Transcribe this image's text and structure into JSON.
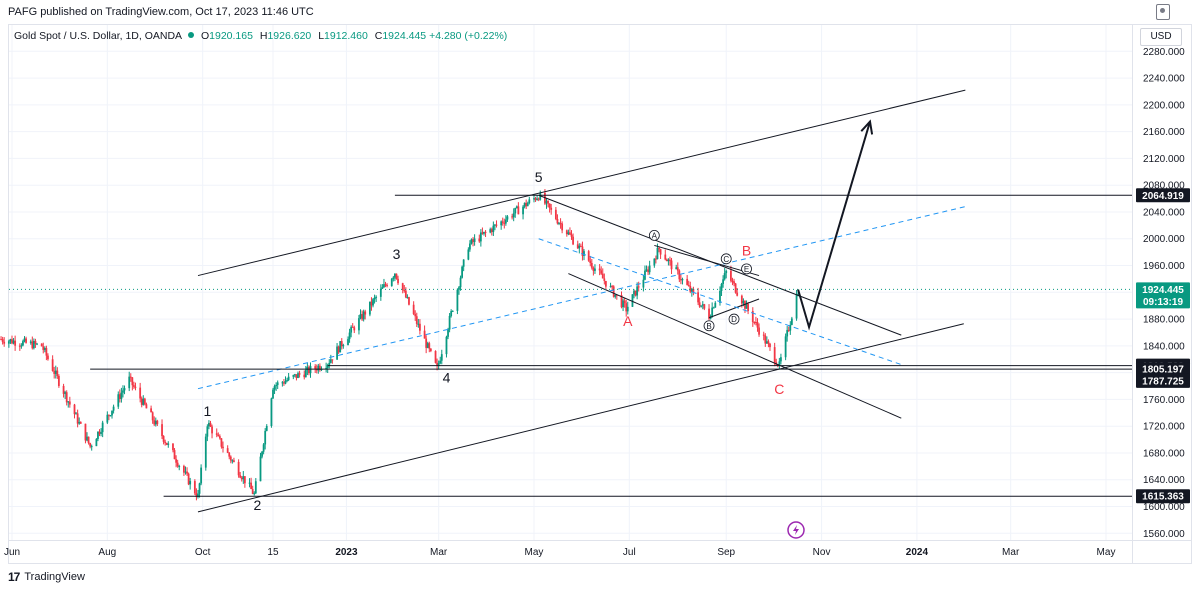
{
  "header": {
    "publisher_text": "PAFG published on TradingView.com, Oct 17, 2023 11:46 UTC",
    "symbol": "Gold Spot / U.S. Dollar, 1D, OANDA",
    "open_label": "O",
    "open": "1920.165",
    "high_label": "H",
    "high": "1926.620",
    "low_label": "L",
    "low": "1912.460",
    "close_label": "C",
    "close": "1924.445",
    "change": "+4.280 (+0.22%)",
    "currency": "USD"
  },
  "footer": {
    "logo_text": "17",
    "brand": "TradingView"
  },
  "colors": {
    "up": "#089981",
    "down": "#f23645",
    "dashed": "#2962ff",
    "drawing": "#131722",
    "price_tag_bg": "#089981"
  },
  "icons": {
    "settings": "settings-icon",
    "lightning": "lightning-icon",
    "logo": "tradingview-logo-icon"
  },
  "chart_data": {
    "type": "candlestick",
    "title": "Gold Spot / U.S. Dollar, 1D, OANDA",
    "y_axis": {
      "range": [
        1540,
        2300
      ],
      "ticks": [
        1560,
        1600,
        1640,
        1680,
        1720,
        1760,
        1800,
        1840,
        1880,
        1920,
        1960,
        2000,
        2040,
        2080,
        2120,
        2160,
        2200,
        2240,
        2280
      ],
      "tick_labels": [
        "1560.000",
        "1600.000",
        "1640.000",
        "1680.000",
        "1720.000",
        "1760.000",
        "1800.000",
        "1840.000",
        "1880.000",
        "1920.000",
        "1960.000",
        "2000.000",
        "2040.000",
        "2080.000",
        "2120.000",
        "2160.000",
        "2200.000",
        "2240.000",
        "2280.000"
      ]
    },
    "x_axis": {
      "tick_labels": [
        "Jun",
        "Aug",
        "Oct",
        "15",
        "2023",
        "Mar",
        "May",
        "Jul",
        "Sep",
        "Nov",
        "2024",
        "Mar",
        "May"
      ],
      "tick_dates": [
        "2022-06-01",
        "2022-08-01",
        "2022-10-01",
        "2022-11-15",
        "2023-01-01",
        "2023-03-01",
        "2023-05-01",
        "2023-07-01",
        "2023-09-01",
        "2023-11-01",
        "2024-01-01",
        "2024-03-01",
        "2024-05-01"
      ]
    },
    "key_points": [
      {
        "date": "2022-05-25",
        "price": 1850
      },
      {
        "date": "2022-06-20",
        "price": 1840
      },
      {
        "date": "2022-07-21",
        "price": 1690
      },
      {
        "date": "2022-08-15",
        "price": 1790
      },
      {
        "date": "2022-09-28",
        "price": 1615
      },
      {
        "date": "2022-10-04",
        "price": 1725
      },
      {
        "date": "2022-11-03",
        "price": 1618
      },
      {
        "date": "2022-11-15",
        "price": 1780
      },
      {
        "date": "2022-12-20",
        "price": 1815
      },
      {
        "date": "2023-02-01",
        "price": 1950
      },
      {
        "date": "2023-02-28",
        "price": 1805
      },
      {
        "date": "2023-03-20",
        "price": 1990
      },
      {
        "date": "2023-05-04",
        "price": 2065
      },
      {
        "date": "2023-06-29",
        "price": 1895
      },
      {
        "date": "2023-07-20",
        "price": 1985
      },
      {
        "date": "2023-08-21",
        "price": 1885
      },
      {
        "date": "2023-09-01",
        "price": 1950
      },
      {
        "date": "2023-10-05",
        "price": 1810
      },
      {
        "date": "2023-10-17",
        "price": 1924.445
      }
    ],
    "price_lines": [
      {
        "label": "2064.919",
        "value": 2064.919,
        "kind": "level"
      },
      {
        "label": "1924.445",
        "value": 1924.445,
        "kind": "current"
      },
      {
        "label": "09:13:19",
        "value": 1912,
        "kind": "countdown"
      },
      {
        "label": "1810.523",
        "value": 1810.523,
        "kind": "level"
      },
      {
        "label": "1805.197",
        "value": 1805.197,
        "kind": "level"
      },
      {
        "label": "1787.725",
        "value": 1787.725,
        "kind": "level"
      },
      {
        "label": "1615.363",
        "value": 1615.363,
        "kind": "level"
      }
    ],
    "wave_labels": [
      {
        "text": "1",
        "date": "2022-10-04",
        "price": 1735,
        "color": "black"
      },
      {
        "text": "2",
        "date": "2022-11-05",
        "price": 1595,
        "color": "black"
      },
      {
        "text": "3",
        "date": "2023-02-02",
        "price": 1970,
        "color": "black"
      },
      {
        "text": "4",
        "date": "2023-03-06",
        "price": 1785,
        "color": "black"
      },
      {
        "text": "5",
        "date": "2023-05-04",
        "price": 2085,
        "color": "black"
      },
      {
        "text": "A",
        "date": "2023-06-30",
        "price": 1870,
        "color": "red"
      },
      {
        "text": "B",
        "date": "2023-09-14",
        "price": 1975,
        "color": "red"
      },
      {
        "text": "C",
        "date": "2023-10-05",
        "price": 1768,
        "color": "red"
      }
    ],
    "circled_labels": [
      {
        "text": "A",
        "date": "2023-07-17",
        "price": 2005
      },
      {
        "text": "B",
        "date": "2023-08-21",
        "price": 1870
      },
      {
        "text": "C",
        "date": "2023-09-01",
        "price": 1970
      },
      {
        "text": "D",
        "date": "2023-09-06",
        "price": 1880
      },
      {
        "text": "E",
        "date": "2023-09-14",
        "price": 1955
      }
    ],
    "trendlines": [
      {
        "from": {
          "date": "2022-09-28",
          "price": 1945
        },
        "to": {
          "date": "2024-02-01",
          "price": 2222
        },
        "style": "solid"
      },
      {
        "from": {
          "date": "2022-09-28",
          "price": 1592
        },
        "to": {
          "date": "2024-01-31",
          "price": 1873
        },
        "style": "solid"
      },
      {
        "from": {
          "date": "2023-05-04",
          "price": 2065
        },
        "to": {
          "date": "2023-12-22",
          "price": 1856
        },
        "style": "solid"
      },
      {
        "from": {
          "date": "2023-05-23",
          "price": 1948
        },
        "to": {
          "date": "2023-12-22",
          "price": 1732
        },
        "style": "solid"
      },
      {
        "from": {
          "date": "2023-07-17",
          "price": 1990
        },
        "to": {
          "date": "2023-09-22",
          "price": 1945
        },
        "style": "solid"
      },
      {
        "from": {
          "date": "2023-08-21",
          "price": 1882
        },
        "to": {
          "date": "2023-09-22",
          "price": 1910
        },
        "style": "solid"
      },
      {
        "from": {
          "date": "2022-09-28",
          "price": 1776
        },
        "to": {
          "date": "2024-02-01",
          "price": 2048
        },
        "style": "dashed"
      },
      {
        "from": {
          "date": "2023-05-04",
          "price": 2000
        },
        "to": {
          "date": "2023-12-22",
          "price": 1812
        },
        "style": "dashed"
      },
      {
        "from": {
          "date": "2022-09-06",
          "price": 1615.363
        },
        "to": {
          "date": "2024-06-15",
          "price": 1615.363
        },
        "style": "solid"
      },
      {
        "from": {
          "date": "2022-07-21",
          "price": 1805.197
        },
        "to": {
          "date": "2024-06-15",
          "price": 1805.197
        },
        "style": "solid"
      },
      {
        "from": {
          "date": "2022-12-20",
          "price": 1810.523
        },
        "to": {
          "date": "2024-06-15",
          "price": 1810.523
        },
        "style": "solid"
      },
      {
        "from": {
          "date": "2023-02-01",
          "price": 2064.919
        },
        "to": {
          "date": "2024-06-15",
          "price": 2064.919
        },
        "style": "solid"
      }
    ],
    "projection": [
      {
        "date": "2023-10-17",
        "price": 1924
      },
      {
        "date": "2023-10-24",
        "price": 1868
      },
      {
        "date": "2023-12-02",
        "price": 2175
      }
    ],
    "grid": true,
    "legend": "top-left"
  }
}
